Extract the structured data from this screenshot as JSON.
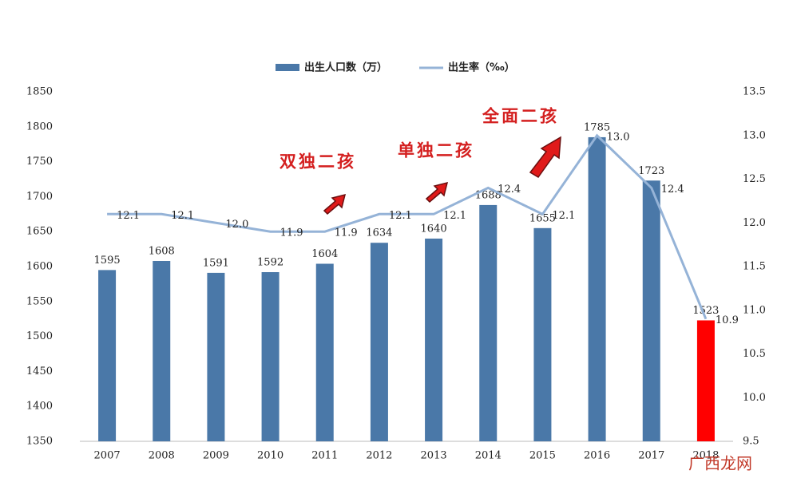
{
  "chart_data": {
    "type": "bar-line",
    "categories": [
      "2007",
      "2008",
      "2009",
      "2010",
      "2011",
      "2012",
      "2013",
      "2014",
      "2015",
      "2016",
      "2017",
      "2018"
    ],
    "series": [
      {
        "name": "出生人口数（万）",
        "type": "bar",
        "axis": "y",
        "color": "#4a78a8",
        "colors": [
          "#4a78a8",
          "#4a78a8",
          "#4a78a8",
          "#4a78a8",
          "#4a78a8",
          "#4a78a8",
          "#4a78a8",
          "#4a78a8",
          "#4a78a8",
          "#4a78a8",
          "#4a78a8",
          "#ff0000"
        ],
        "values": [
          1595,
          1608,
          1591,
          1592,
          1604,
          1634,
          1640,
          1688,
          1655,
          1785,
          1723,
          1523
        ]
      },
      {
        "name": "出生率（‰）",
        "type": "line",
        "axis": "y2",
        "color": "#95b3d7",
        "values": [
          12.1,
          12.1,
          12.0,
          11.9,
          11.9,
          12.1,
          12.1,
          12.4,
          12.1,
          13.0,
          12.4,
          10.9
        ],
        "value_labels": [
          "12.1",
          "12.1",
          "12.0",
          "11.9",
          "11.9",
          "12.1",
          "12.1",
          "12.4",
          "12.1",
          "13.0",
          "12.4",
          "10.9"
        ]
      }
    ],
    "ylim": [
      1350,
      1850
    ],
    "yticks": [
      1350,
      1400,
      1450,
      1500,
      1550,
      1600,
      1650,
      1700,
      1750,
      1800,
      1850
    ],
    "y2lim": [
      9.5,
      13.5
    ],
    "y2ticks": [
      9.5,
      {
        "value": 10,
        "label": "10.0"
      },
      10.5,
      {
        "value": 11,
        "label": "11.0"
      },
      11.5,
      {
        "value": 12,
        "label": "12.0"
      },
      12.5,
      {
        "value": 13,
        "label": "13.0"
      },
      13.5
    ],
    "legend": "top",
    "annotations": [
      "双独二孩",
      "单独二孩",
      "全面二孩"
    ],
    "watermark": "广西龙网"
  }
}
